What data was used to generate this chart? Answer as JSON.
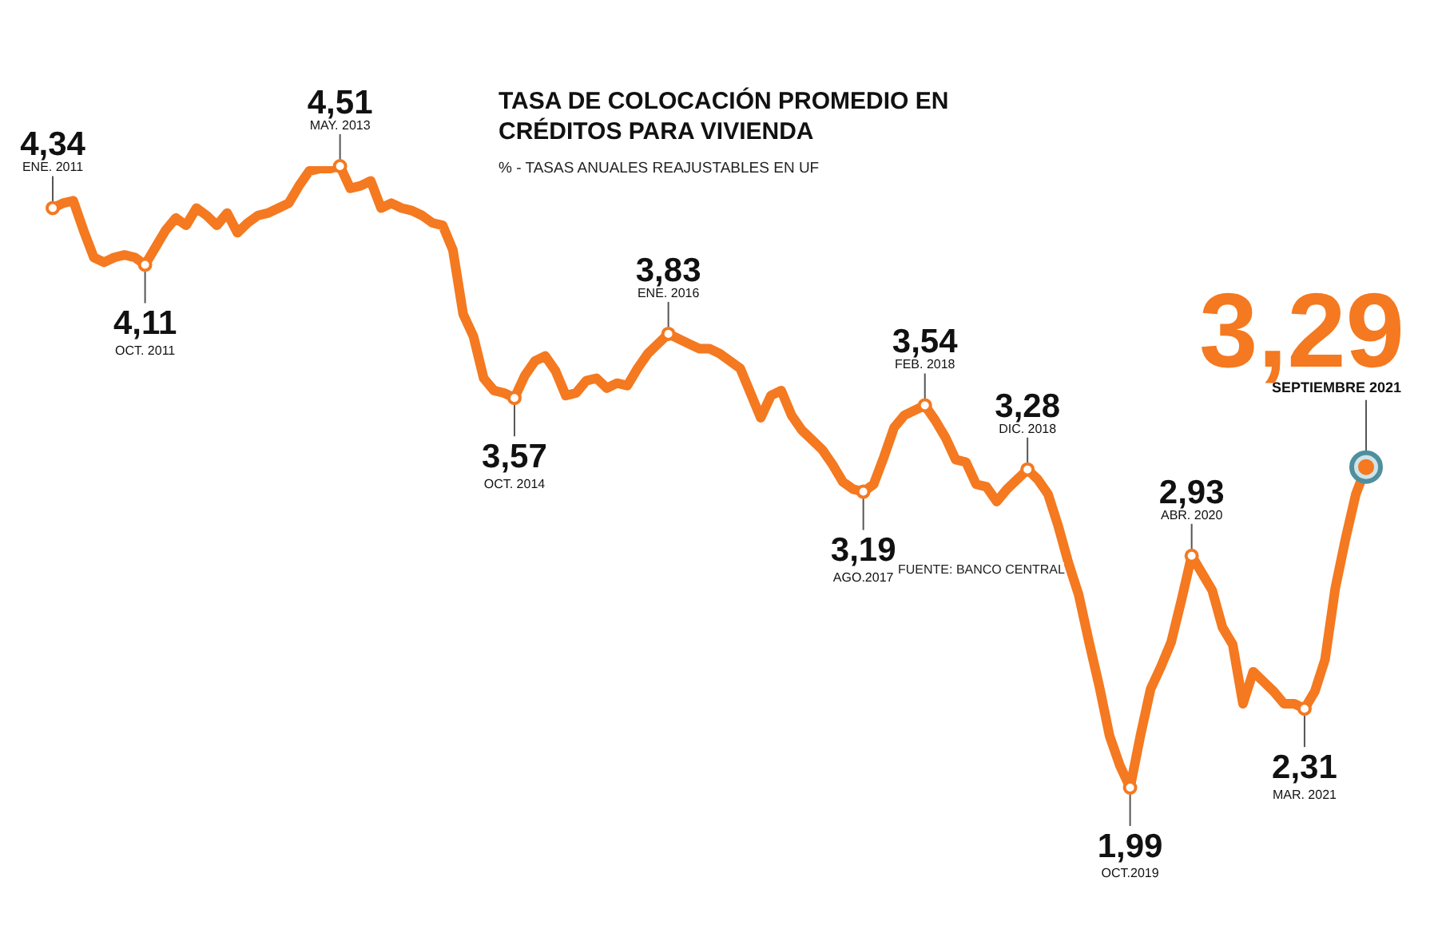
{
  "chart_data": {
    "type": "line",
    "title": "TASA DE COLOCACIÓN PROMEDIO EN CRÉDITOS PARA VIVIENDA",
    "subtitle": "% - TASAS ANUALES REAJUSTABLES EN UF",
    "categories": [
      null,
      null,
      null,
      null,
      null,
      null,
      null,
      null,
      null,
      null,
      null,
      null,
      null,
      null,
      null,
      null,
      null,
      null,
      null,
      null,
      null,
      null,
      null,
      null,
      null,
      null,
      null,
      null,
      null,
      null,
      null,
      null,
      null,
      null,
      null,
      null,
      null,
      null,
      null,
      null,
      null,
      null,
      null,
      null,
      null,
      null,
      null,
      null,
      null,
      null,
      null,
      null,
      null,
      null,
      null,
      null,
      null,
      null,
      null,
      null,
      null,
      null,
      null,
      null,
      null,
      null,
      null,
      null,
      null,
      null,
      null,
      null,
      null,
      null,
      null,
      null,
      null,
      null,
      null,
      null,
      null,
      null,
      null,
      null,
      null,
      null,
      null,
      null,
      null,
      null,
      null,
      null,
      null,
      null,
      null,
      null,
      null,
      null,
      null,
      null,
      null,
      null,
      null,
      null,
      null,
      null,
      null,
      null,
      null,
      null,
      null,
      null,
      null,
      null,
      null,
      null,
      null,
      null,
      null,
      null,
      null,
      null,
      null,
      null,
      null,
      null,
      null,
      null,
      null
    ],
    "series": [
      {
        "color": "#f47920",
        "values": [
          4.34,
          4.36,
          4.37,
          4.25,
          4.14,
          4.12,
          4.14,
          4.15,
          4.14,
          4.11,
          4.18,
          4.25,
          4.3,
          4.27,
          4.34,
          4.31,
          4.27,
          4.32,
          4.24,
          4.28,
          4.31,
          4.32,
          4.34,
          4.36,
          4.43,
          4.49,
          4.5,
          4.5,
          4.51,
          4.42,
          4.43,
          4.45,
          4.34,
          4.36,
          4.34,
          4.33,
          4.31,
          4.28,
          4.27,
          4.17,
          3.91,
          3.82,
          3.65,
          3.6,
          3.59,
          3.57,
          3.66,
          3.72,
          3.74,
          3.68,
          3.58,
          3.59,
          3.64,
          3.65,
          3.61,
          3.63,
          3.62,
          3.69,
          3.75,
          3.79,
          3.83,
          3.81,
          3.79,
          3.77,
          3.77,
          3.75,
          3.72,
          3.69,
          3.59,
          3.49,
          3.58,
          3.6,
          3.5,
          3.44,
          3.4,
          3.36,
          3.3,
          3.23,
          3.2,
          3.19,
          3.22,
          3.33,
          3.45,
          3.5,
          3.52,
          3.54,
          3.48,
          3.41,
          3.32,
          3.31,
          3.22,
          3.21,
          3.15,
          3.2,
          3.24,
          3.28,
          3.24,
          3.18,
          3.05,
          2.9,
          2.77,
          2.58,
          2.4,
          2.2,
          2.08,
          1.99,
          2.2,
          2.39,
          2.48,
          2.58,
          2.75,
          2.93,
          2.86,
          2.79,
          2.64,
          2.57,
          2.33,
          2.46,
          2.42,
          2.38,
          2.33,
          2.33,
          2.31,
          2.38,
          2.51,
          2.8,
          3.0,
          3.18,
          3.29
        ],
        "value_labels": [
          "4,34",
          null,
          null,
          null,
          null,
          null,
          null,
          null,
          null,
          "4,11",
          null,
          null,
          null,
          null,
          null,
          null,
          null,
          null,
          null,
          null,
          null,
          null,
          null,
          null,
          null,
          null,
          null,
          null,
          "4,51",
          null,
          null,
          null,
          null,
          null,
          null,
          null,
          null,
          null,
          null,
          null,
          null,
          null,
          null,
          null,
          null,
          "3,57",
          null,
          null,
          null,
          null,
          null,
          null,
          null,
          null,
          null,
          null,
          null,
          null,
          null,
          null,
          "3,83",
          null,
          null,
          null,
          null,
          null,
          null,
          null,
          null,
          null,
          null,
          null,
          null,
          null,
          null,
          null,
          null,
          null,
          null,
          "3,19",
          null,
          null,
          null,
          null,
          null,
          "3,54",
          null,
          null,
          null,
          null,
          null,
          null,
          null,
          null,
          null,
          "3,28",
          null,
          null,
          null,
          null,
          null,
          null,
          null,
          null,
          null,
          "1,99",
          null,
          null,
          null,
          null,
          null,
          "2,93",
          null,
          null,
          null,
          null,
          null,
          null,
          null,
          null,
          null,
          null,
          "2,31",
          null,
          null,
          null,
          null,
          null,
          "3,29"
        ]
      }
    ],
    "annotations": [
      "ENE. 2011",
      "OCT. 2011",
      "MAY. 2013",
      "OCT. 2014",
      "ENE. 2016",
      "AGO.2017",
      "FEB. 2018",
      "DIC. 2018",
      "OCT.2019",
      "ABR. 2020",
      "MAR. 2021",
      "SEPTIEMBRE 2021",
      "FUENTE: BANCO CENTRAL"
    ],
    "legend": false,
    "grid": false
  }
}
